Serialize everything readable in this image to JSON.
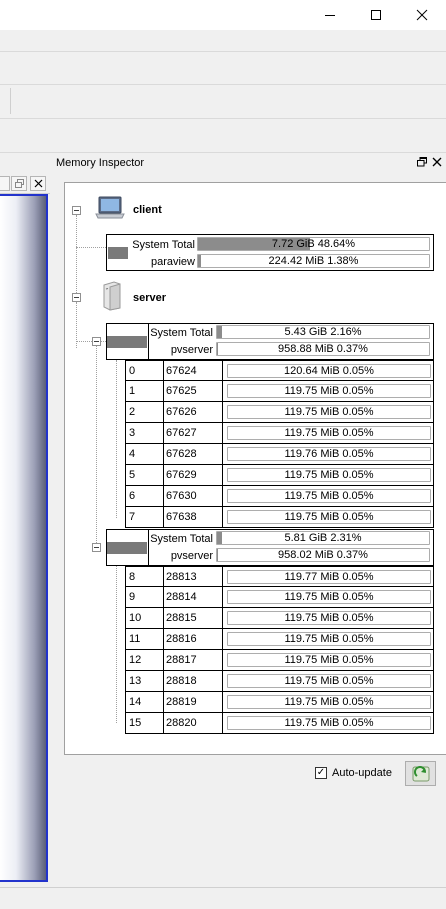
{
  "window": {
    "minimize_icon": "minimize-icon",
    "maximize_icon": "maximize-icon",
    "close_icon": "close-icon"
  },
  "dock": {
    "title": "Memory Inspector",
    "float_icon": "float-icon",
    "close_icon": "close-icon"
  },
  "client": {
    "name": "client",
    "rows": [
      {
        "label": "System Total",
        "text": "7.72 GiB 48.64%",
        "fraction": 0.4864
      },
      {
        "label": "paraview",
        "text": "224.42 MiB 1.38%",
        "fraction": 0.0138
      }
    ]
  },
  "server": {
    "name": "server",
    "groups": [
      {
        "total_label": "System Total",
        "total_text": "5.43 GiB 2.16%",
        "total_fraction": 0.0216,
        "proc_label": "pvserver",
        "proc_text": "958.88 MiB 0.37%",
        "proc_fraction": 0.0037,
        "ranks": [
          {
            "rank": "0",
            "pid": "67624",
            "text": "120.64 MiB 0.05%"
          },
          {
            "rank": "1",
            "pid": "67625",
            "text": "119.75 MiB 0.05%"
          },
          {
            "rank": "2",
            "pid": "67626",
            "text": "119.75 MiB 0.05%"
          },
          {
            "rank": "3",
            "pid": "67627",
            "text": "119.75 MiB 0.05%"
          },
          {
            "rank": "4",
            "pid": "67628",
            "text": "119.76 MiB 0.05%"
          },
          {
            "rank": "5",
            "pid": "67629",
            "text": "119.75 MiB 0.05%"
          },
          {
            "rank": "6",
            "pid": "67630",
            "text": "119.75 MiB 0.05%"
          },
          {
            "rank": "7",
            "pid": "67638",
            "text": "119.75 MiB 0.05%"
          }
        ]
      },
      {
        "total_label": "System Total",
        "total_text": "5.81 GiB 2.31%",
        "total_fraction": 0.0231,
        "proc_label": "pvserver",
        "proc_text": "958.02 MiB 0.37%",
        "proc_fraction": 0.0037,
        "ranks": [
          {
            "rank": "8",
            "pid": "28813",
            "text": "119.77 MiB 0.05%"
          },
          {
            "rank": "9",
            "pid": "28814",
            "text": "119.75 MiB 0.05%"
          },
          {
            "rank": "10",
            "pid": "28815",
            "text": "119.75 MiB 0.05%"
          },
          {
            "rank": "11",
            "pid": "28816",
            "text": "119.75 MiB 0.05%"
          },
          {
            "rank": "12",
            "pid": "28817",
            "text": "119.75 MiB 0.05%"
          },
          {
            "rank": "13",
            "pid": "28818",
            "text": "119.75 MiB 0.05%"
          },
          {
            "rank": "14",
            "pid": "28819",
            "text": "119.75 MiB 0.05%"
          },
          {
            "rank": "15",
            "pid": "28820",
            "text": "119.75 MiB 0.05%"
          }
        ]
      }
    ]
  },
  "footer": {
    "auto_update_label": "Auto-update",
    "auto_update_checked": true
  }
}
